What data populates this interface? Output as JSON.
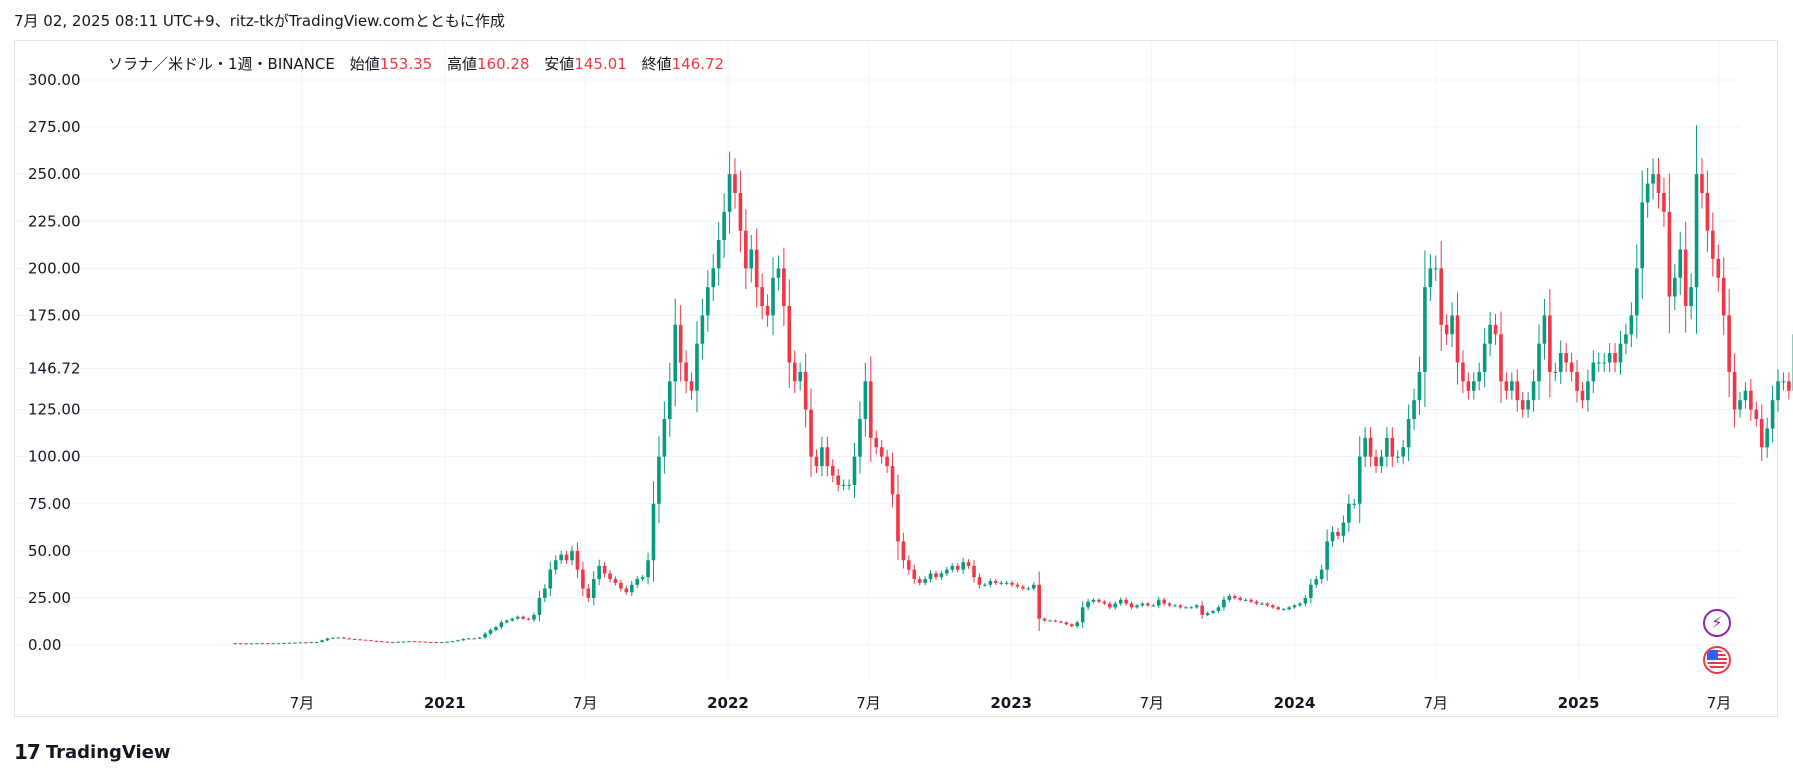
{
  "snapshot": {
    "header": "7月 02, 2025 08:11 UTC+9、ritz-tkがTradingView.comとともに作成"
  },
  "legend": {
    "symbol": "ソラナ／米ドル・1週・BINANCE",
    "open_label": "始値",
    "open_value": "153.35",
    "high_label": "高値",
    "high_value": "160.28",
    "low_label": "安値",
    "low_value": "145.01",
    "close_label": "終値",
    "close_value": "146.72"
  },
  "brand": {
    "logo": "17",
    "name": "TradingView"
  },
  "icons": {
    "bolt": "lightning-icon",
    "flag": "us-flag-icon"
  },
  "colors": {
    "up": "#089981",
    "down": "#f23645",
    "grid": "#f0f3fa",
    "text": "#131722",
    "border": "#e0e3eb"
  },
  "chart_data": {
    "type": "candlestick",
    "title": "ソラナ／米ドル・1週・BINANCE",
    "ylim": [
      -25,
      305
    ],
    "y_ticks": [
      "0.00",
      "25.00",
      "50.00",
      "75.00",
      "100.00",
      "125.00",
      "146.72",
      "175.00",
      "200.00",
      "225.00",
      "250.00",
      "275.00",
      "300.00"
    ],
    "x_range": [
      "2020-01-13",
      "2025-07-28"
    ],
    "x_ticks": [
      {
        "label": "7月",
        "date": "2020-07-01",
        "major": false
      },
      {
        "label": "2021",
        "date": "2021-01-01",
        "major": true
      },
      {
        "label": "7月",
        "date": "2021-07-01",
        "major": false
      },
      {
        "label": "2022",
        "date": "2022-01-01",
        "major": true
      },
      {
        "label": "7月",
        "date": "2022-07-01",
        "major": false
      },
      {
        "label": "2023",
        "date": "2023-01-01",
        "major": true
      },
      {
        "label": "7月",
        "date": "2023-07-01",
        "major": false
      },
      {
        "label": "2024",
        "date": "2024-01-01",
        "major": true
      },
      {
        "label": "7月",
        "date": "2024-07-01",
        "major": false
      },
      {
        "label": "2025",
        "date": "2025-01-01",
        "major": true
      },
      {
        "label": "7月",
        "date": "2025-07-01",
        "major": false
      }
    ],
    "grid": true,
    "first_bar": "2020-04-06",
    "bar_interval": "1週",
    "closes": [
      0.95,
      0.9,
      0.85,
      0.9,
      0.95,
      1.0,
      0.9,
      0.95,
      1.0,
      1.1,
      1.2,
      1.3,
      1.4,
      1.2,
      1.5,
      1.6,
      2.5,
      3.5,
      3.8,
      4.0,
      3.5,
      3.2,
      3.0,
      2.8,
      2.6,
      2.2,
      2.0,
      1.8,
      1.6,
      1.5,
      1.7,
      1.8,
      2.0,
      1.9,
      1.8,
      1.6,
      1.5,
      1.4,
      1.6,
      1.7,
      2.0,
      2.5,
      3.2,
      3.5,
      3.4,
      4.0,
      6.0,
      8.0,
      9.5,
      12.0,
      13.0,
      14.0,
      15.0,
      14.0,
      13.5,
      16.0,
      25.0,
      30.0,
      40.0,
      45.0,
      48.0,
      45.0,
      50.0,
      40.0,
      30.0,
      25.0,
      35.0,
      42.0,
      38.0,
      35.0,
      33.0,
      30.0,
      28.0,
      32.0,
      35.0,
      36.0,
      45.0,
      75.0,
      100.0,
      120.0,
      140.0,
      170.0,
      150.0,
      140.0,
      135.0,
      160.0,
      175.0,
      190.0,
      200.0,
      215.0,
      230.0,
      250.0,
      240.0,
      220.0,
      200.0,
      210.0,
      190.0,
      180.0,
      175.0,
      195.0,
      200.0,
      180.0,
      150.0,
      140.0,
      145.0,
      125.0,
      100.0,
      95.0,
      105.0,
      95.0,
      90.0,
      85.0,
      85.0,
      85.0,
      100.0,
      120.0,
      140.0,
      110.0,
      105.0,
      100.0,
      95.0,
      80.0,
      55.0,
      45.0,
      40.0,
      35.0,
      33.0,
      35.0,
      38.0,
      36.0,
      38.0,
      40.0,
      42.0,
      40.0,
      44.0,
      42.0,
      36.0,
      32.0,
      32.0,
      34.0,
      33.0,
      33.0,
      33.0,
      32.0,
      31.0,
      30.0,
      30.0,
      32.0,
      14.0,
      13.0,
      13.0,
      12.5,
      12.0,
      11.0,
      10.0,
      12.0,
      20.0,
      23.0,
      24.0,
      23.0,
      22.0,
      20.0,
      22.0,
      24.0,
      22.0,
      20.0,
      21.0,
      22.0,
      21.0,
      21.0,
      24.0,
      22.0,
      21.0,
      21.0,
      20.0,
      20.0,
      20.0,
      21.0,
      16.0,
      17.0,
      18.0,
      20.0,
      24.0,
      26.0,
      25.0,
      24.0,
      24.0,
      23.0,
      22.0,
      22.0,
      21.0,
      20.0,
      19.0,
      19.0,
      20.0,
      21.0,
      22.0,
      25.0,
      32.0,
      35.0,
      40.0,
      55.0,
      60.0,
      58.0,
      65.0,
      75.0,
      75.0,
      100.0,
      110.0,
      100.0,
      95.0,
      100.0,
      110.0,
      100.0,
      100.0,
      105.0,
      120.0,
      130.0,
      145.0,
      190.0,
      200.0,
      200.0,
      170.0,
      165.0,
      175.0,
      150.0,
      140.0,
      135.0,
      140.0,
      145.0,
      160.0,
      170.0,
      165.0,
      140.0,
      135.0,
      140.0,
      130.0,
      125.0,
      130.0,
      140.0,
      160.0,
      175.0,
      145.0,
      145.0,
      155.0,
      150.0,
      145.0,
      135.0,
      130.0,
      140.0,
      150.0,
      150.0,
      150.0,
      155.0,
      150.0,
      160.0,
      165.0,
      175.0,
      200.0,
      235.0,
      245.0,
      250.0,
      240.0,
      230.0,
      185.0,
      195.0,
      210.0,
      180.0,
      190.0,
      250.0,
      240.0,
      220.0,
      205.0,
      195.0,
      175.0,
      145.0,
      125.0,
      130.0,
      135.0,
      125.0,
      120.0,
      105.0,
      115.0,
      130.0,
      140.0,
      140.0,
      135.0,
      165.0,
      170.0,
      175.0,
      160.0,
      150.0,
      145.0,
      145.0,
      145.0,
      146.72
    ]
  }
}
